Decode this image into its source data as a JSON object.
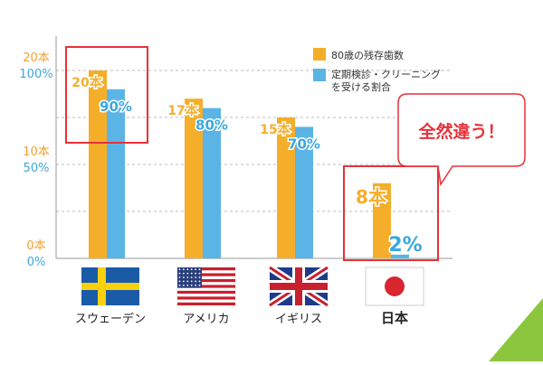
{
  "chart_data": {
    "type": "bar",
    "categories": [
      "スウェーデン",
      "アメリカ",
      "イギリス",
      "日本"
    ],
    "series": [
      {
        "name": "80歳の残存歯数",
        "values": [
          20,
          17,
          15,
          8
        ],
        "value_labels": [
          "20本",
          "17本",
          "15本",
          "8本"
        ],
        "color": "#F5AE2A"
      },
      {
        "name": "定期検診・クリーニングを受ける割合",
        "values": [
          90,
          80,
          70,
          2
        ],
        "value_labels": [
          "90%",
          "80%",
          "70%",
          "2%"
        ],
        "color": "#5AB4E6"
      }
    ],
    "axes": {
      "left_teeth": {
        "ticks": [
          "0本",
          "10本",
          "20本"
        ],
        "ylim": [
          0,
          20
        ],
        "color": "#F0A030"
      },
      "left_percent": {
        "ticks": [
          "0%",
          "50%",
          "100%"
        ],
        "ylim": [
          0,
          100
        ],
        "color": "#3AA8E0"
      }
    },
    "grid": "dashed",
    "legend": {
      "position": "top-right",
      "entries": [
        "80歳の残存歯数",
        "定期検診・クリーニングを受ける割合"
      ]
    },
    "highlights": [
      "スウェーデン",
      "日本"
    ],
    "highlight_color": "#E5323A",
    "flags": [
      "sweden-flag-icon",
      "usa-flag-icon",
      "uk-flag-icon",
      "japan-flag-icon"
    ],
    "bold_category": "日本"
  },
  "callout": {
    "text": "全然違う！",
    "border_color": "#E5323A",
    "text_color": "#E5323A"
  },
  "accent_color": "#8CC63F"
}
